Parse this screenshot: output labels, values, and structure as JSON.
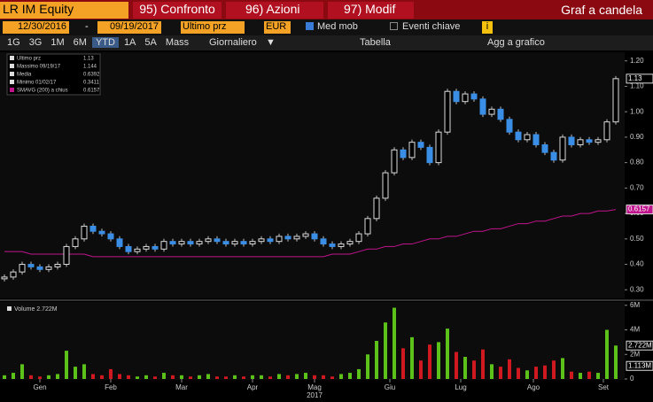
{
  "toolbar": {
    "security": "LR IM Equity",
    "menu": [
      "95) Confronto",
      "96) Azioni",
      "97) Modif"
    ],
    "chart_kind": "Graf a candela",
    "start_date": "12/30/2016",
    "dash": "-",
    "end_date": "09/19/2017",
    "field": "Ultimo prz",
    "currency": "EUR",
    "moving_avg": "Med mob",
    "events": "Eventi chiave",
    "info": "i",
    "periods": [
      "1G",
      "3G",
      "1M",
      "6M",
      "YTD",
      "1A",
      "5A",
      "Mass"
    ],
    "frequency": "Giornaliero",
    "table": "Tabella",
    "add_to_chart": "Agg a grafico"
  },
  "chart_data": {
    "type": "candlestick",
    "legend": [
      {
        "label": "Ultimo prz",
        "value": 1.13
      },
      {
        "label": "Massimo 09/19/17",
        "value": 1.144
      },
      {
        "label": "Media",
        "value": 0.6392
      },
      {
        "label": "Minimo 01/02/17",
        "value": 0.3411
      },
      {
        "label": "SMAVG (200) a chius",
        "value": 0.6157
      }
    ],
    "close": [
      0.35,
      0.37,
      0.4,
      0.39,
      0.38,
      0.39,
      0.4,
      0.47,
      0.5,
      0.55,
      0.53,
      0.52,
      0.5,
      0.47,
      0.45,
      0.46,
      0.47,
      0.46,
      0.49,
      0.48,
      0.49,
      0.48,
      0.49,
      0.5,
      0.49,
      0.48,
      0.49,
      0.48,
      0.49,
      0.5,
      0.49,
      0.51,
      0.5,
      0.51,
      0.52,
      0.5,
      0.48,
      0.47,
      0.48,
      0.49,
      0.52,
      0.58,
      0.66,
      0.76,
      0.85,
      0.82,
      0.88,
      0.86,
      0.8,
      0.92,
      1.08,
      1.04,
      1.07,
      1.05,
      0.99,
      1.01,
      0.97,
      0.92,
      0.89,
      0.91,
      0.87,
      0.84,
      0.81,
      0.9,
      0.87,
      0.89,
      0.88,
      0.89,
      0.96,
      1.13
    ],
    "sma": {
      "name": "SMAVG (200)",
      "color": "#c0148c",
      "values": [
        0.45,
        0.45,
        0.45,
        0.44,
        0.44,
        0.44,
        0.44,
        0.44,
        0.44,
        0.44,
        0.43,
        0.43,
        0.43,
        0.43,
        0.43,
        0.43,
        0.43,
        0.43,
        0.43,
        0.43,
        0.43,
        0.43,
        0.43,
        0.43,
        0.43,
        0.43,
        0.43,
        0.43,
        0.43,
        0.43,
        0.43,
        0.43,
        0.43,
        0.43,
        0.43,
        0.43,
        0.43,
        0.44,
        0.44,
        0.44,
        0.45,
        0.46,
        0.46,
        0.47,
        0.47,
        0.48,
        0.48,
        0.49,
        0.5,
        0.5,
        0.51,
        0.51,
        0.52,
        0.53,
        0.53,
        0.54,
        0.54,
        0.55,
        0.56,
        0.56,
        0.57,
        0.57,
        0.58,
        0.59,
        0.59,
        0.6,
        0.6,
        0.61,
        0.61,
        0.6157
      ]
    },
    "ylim": [
      0.28,
      1.22
    ],
    "yticks": [
      {
        "value": 0.3,
        "label": "0.30"
      },
      {
        "value": 0.4,
        "label": "0.40"
      },
      {
        "value": 0.5,
        "label": "0.50"
      },
      {
        "value": 0.6,
        "label": "0.60"
      },
      {
        "value": 0.7,
        "label": "0.70"
      },
      {
        "value": 0.8,
        "label": "0.80"
      },
      {
        "value": 0.9,
        "label": "0.90"
      },
      {
        "value": 1.0,
        "label": "1.00"
      },
      {
        "value": 1.1,
        "label": "1.10"
      },
      {
        "value": 1.2,
        "label": "1.20"
      }
    ],
    "last_tag": "1.13",
    "sma_tag": "0.6157",
    "volume_title": "Volume 2.722M",
    "volume": [
      0.3,
      0.5,
      1.2,
      0.3,
      0.2,
      0.3,
      0.4,
      2.3,
      1.0,
      1.2,
      0.4,
      0.3,
      0.8,
      0.4,
      0.3,
      0.2,
      0.3,
      0.2,
      0.5,
      0.3,
      0.3,
      0.2,
      0.3,
      0.4,
      0.2,
      0.2,
      0.3,
      0.2,
      0.3,
      0.3,
      0.2,
      0.4,
      0.3,
      0.4,
      0.5,
      0.3,
      0.3,
      0.2,
      0.4,
      0.5,
      0.8,
      2.0,
      3.1,
      4.6,
      5.8,
      2.5,
      3.4,
      1.5,
      2.8,
      3.0,
      4.1,
      2.2,
      1.8,
      1.5,
      2.4,
      1.2,
      1.0,
      1.6,
      0.9,
      0.7,
      1.0,
      1.1,
      1.5,
      1.7,
      0.6,
      0.5,
      0.6,
      0.5,
      4.0,
      2.722
    ],
    "vlim": [
      0,
      6.2
    ],
    "vticks": [
      {
        "value": 0,
        "label": "0"
      },
      {
        "value": 2,
        "label": "2M"
      },
      {
        "value": 4,
        "label": "4M"
      },
      {
        "value": 6,
        "label": "6M"
      }
    ],
    "vol_tags": [
      "2.722M",
      "1.113M"
    ],
    "xticks": [
      {
        "value": 4,
        "label": "Gen"
      },
      {
        "value": 12,
        "label": "Feb"
      },
      {
        "value": 20,
        "label": "Mar"
      },
      {
        "value": 28,
        "label": "Apr"
      },
      {
        "value": 35,
        "label": "Mag"
      },
      {
        "value": 43.5,
        "label": "Giu"
      },
      {
        "value": 51.5,
        "label": "Lug"
      },
      {
        "value": 59.7,
        "label": "Ago"
      },
      {
        "value": 67.6,
        "label": "Set"
      }
    ],
    "year": "2017"
  }
}
